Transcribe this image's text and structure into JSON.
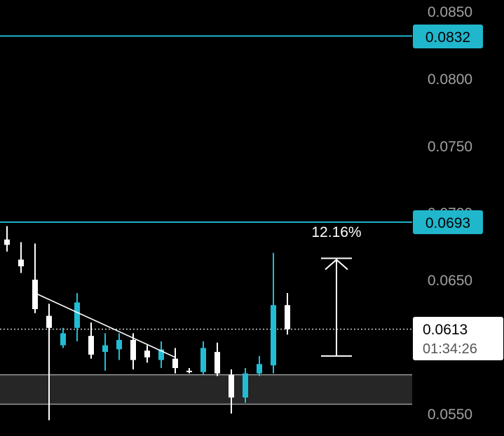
{
  "colors": {
    "background": "#000000",
    "bullish": "#22bcd4",
    "bearish": "#ffffff",
    "level_line": "#20b6cc",
    "axis_text": "#a0a0a0",
    "zone_fill": "#262626",
    "price_tag_bg": "#ffffff",
    "price_tag_text": "#000000"
  },
  "price_axis": {
    "tick_labels": [
      "0.0850",
      "0.0800",
      "0.0750",
      "0.0700",
      "0.0650",
      "0.0550"
    ]
  },
  "levels": [
    {
      "label": "0.0832",
      "price": 0.0832
    },
    {
      "label": "0.0693",
      "price": 0.0693
    }
  ],
  "current_price": {
    "label": "0.0613",
    "countdown": "01:34:26",
    "price": 0.0613
  },
  "measure": {
    "label": "12.16%",
    "from": 0.0593,
    "to": 0.0666
  },
  "demand_zone": {
    "low": 0.0557,
    "high": 0.0579
  },
  "trendline": {
    "from": {
      "bar": 2,
      "price": 0.064
    },
    "to": {
      "bar": 12,
      "price": 0.0592
    }
  },
  "chart_data": {
    "type": "candlestick",
    "ylim": [
      0.054,
      0.0862
    ],
    "y_ticks": [
      0.085,
      0.08,
      0.075,
      0.07,
      0.065,
      0.055
    ],
    "candles": [
      {
        "o": 0.068,
        "h": 0.069,
        "l": 0.0671,
        "c": 0.0676
      },
      {
        "o": 0.0665,
        "h": 0.0678,
        "l": 0.0655,
        "c": 0.066
      },
      {
        "o": 0.065,
        "h": 0.0677,
        "l": 0.0625,
        "c": 0.0628
      },
      {
        "o": 0.0623,
        "h": 0.0632,
        "l": 0.0545,
        "c": 0.0614
      },
      {
        "o": 0.0601,
        "h": 0.0614,
        "l": 0.0599,
        "c": 0.061
      },
      {
        "o": 0.0614,
        "h": 0.064,
        "l": 0.0604,
        "c": 0.0633
      },
      {
        "o": 0.0608,
        "h": 0.0618,
        "l": 0.0591,
        "c": 0.0594
      },
      {
        "o": 0.0596,
        "h": 0.061,
        "l": 0.0582,
        "c": 0.0601
      },
      {
        "o": 0.0598,
        "h": 0.061,
        "l": 0.059,
        "c": 0.0605
      },
      {
        "o": 0.0605,
        "h": 0.061,
        "l": 0.0583,
        "c": 0.059
      },
      {
        "o": 0.0597,
        "h": 0.0601,
        "l": 0.0588,
        "c": 0.0592
      },
      {
        "o": 0.059,
        "h": 0.0604,
        "l": 0.0584,
        "c": 0.0598
      },
      {
        "o": 0.0591,
        "h": 0.0599,
        "l": 0.058,
        "c": 0.0584
      },
      {
        "o": 0.0582,
        "h": 0.0584,
        "l": 0.058,
        "c": 0.0581
      },
      {
        "o": 0.0581,
        "h": 0.0604,
        "l": 0.0579,
        "c": 0.0599
      },
      {
        "o": 0.0596,
        "h": 0.0603,
        "l": 0.0578,
        "c": 0.058
      },
      {
        "o": 0.0579,
        "h": 0.0583,
        "l": 0.055,
        "c": 0.0562
      },
      {
        "o": 0.0562,
        "h": 0.0584,
        "l": 0.0558,
        "c": 0.058
      },
      {
        "o": 0.058,
        "h": 0.0593,
        "l": 0.0578,
        "c": 0.0587
      },
      {
        "o": 0.0586,
        "h": 0.067,
        "l": 0.058,
        "c": 0.0631
      },
      {
        "o": 0.0631,
        "h": 0.064,
        "l": 0.0609,
        "c": 0.0613
      }
    ]
  }
}
